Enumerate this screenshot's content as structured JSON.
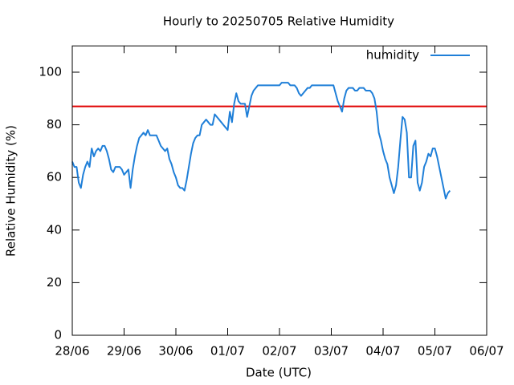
{
  "chart_data": {
    "type": "line",
    "title": "Hourly to 20250705 Relative Humidity",
    "xlabel": "Date (UTC)",
    "ylabel": "Relative Humidity (%)",
    "x": [
      0,
      1,
      2,
      3,
      4,
      5,
      6,
      7,
      8,
      9,
      10,
      11,
      12,
      13,
      14,
      15,
      16,
      17,
      18,
      19,
      20,
      21,
      22,
      23,
      24,
      25,
      26,
      27,
      28,
      29,
      30,
      31,
      32,
      33,
      34,
      35,
      36,
      37,
      38,
      39,
      40,
      41,
      42,
      43,
      44,
      45,
      46,
      47,
      48,
      49,
      50,
      51,
      52,
      53,
      54,
      55,
      56,
      57,
      58,
      59,
      60,
      61,
      62,
      63,
      64,
      65,
      66,
      67,
      68,
      69,
      70,
      71,
      72,
      73,
      74,
      75,
      76,
      77,
      78,
      79,
      80,
      81,
      82,
      83,
      84,
      85,
      86,
      87,
      88,
      89,
      90,
      91,
      92,
      93,
      94,
      95,
      96,
      97,
      98,
      99,
      100,
      101,
      102,
      103,
      104,
      105,
      106,
      107,
      108,
      109,
      110,
      111,
      112,
      113,
      114,
      115,
      116,
      117,
      118,
      119,
      120,
      121,
      122,
      123,
      124,
      125,
      126,
      127,
      128,
      129,
      130,
      131,
      132,
      133,
      134,
      135,
      136,
      137,
      138,
      139,
      140,
      141,
      142,
      143,
      144,
      145,
      146,
      147,
      148,
      149,
      150,
      151,
      152,
      153,
      154,
      155,
      156,
      157,
      158,
      159,
      160,
      161,
      162,
      163,
      164,
      165,
      166,
      167,
      168,
      169,
      170,
      171,
      172,
      173,
      174,
      175
    ],
    "series": [
      {
        "name": "humidity",
        "color": "#1f7fd8",
        "values": [
          66,
          64,
          64,
          58,
          56,
          61,
          64,
          66,
          64,
          71,
          68,
          70,
          71,
          70,
          72,
          72,
          70,
          67,
          63,
          62,
          64,
          64,
          64,
          63,
          61,
          62,
          63,
          56,
          63,
          68,
          72,
          75,
          76,
          77,
          76,
          78,
          76,
          76,
          76,
          76,
          74,
          72,
          71,
          70,
          71,
          67,
          65,
          62,
          60,
          57,
          56,
          56,
          55,
          59,
          64,
          69,
          73,
          75,
          76,
          76,
          80,
          81,
          82,
          81,
          80,
          80,
          84,
          83,
          82,
          81,
          80,
          79,
          78,
          85,
          81,
          88,
          92,
          89,
          88,
          88,
          88,
          83,
          87,
          91,
          93,
          94,
          95,
          95,
          95,
          95,
          95,
          95,
          95,
          95,
          95,
          95,
          95,
          96,
          96,
          96,
          96,
          95,
          95,
          95,
          94,
          92,
          91,
          92,
          93,
          94,
          94,
          95,
          95,
          95,
          95,
          95,
          95,
          95,
          95,
          95,
          95,
          95,
          92,
          89,
          87,
          85,
          90,
          93,
          94,
          94,
          94,
          93,
          93,
          94,
          94,
          94,
          93,
          93,
          93,
          92,
          90,
          85,
          77,
          74,
          70,
          67,
          65,
          60,
          57,
          54,
          57,
          64,
          74,
          83,
          82,
          77,
          60,
          60,
          72,
          74,
          58,
          55,
          58,
          64,
          66,
          69,
          68,
          71,
          71,
          68,
          64,
          60,
          56,
          52,
          54,
          55
        ]
      }
    ],
    "hline": {
      "value": 87,
      "color": "#e00000"
    },
    "xlim": [
      0,
      192
    ],
    "xticks": [
      {
        "value": 0,
        "label": "28/06"
      },
      {
        "value": 24,
        "label": "29/06"
      },
      {
        "value": 48,
        "label": "30/06"
      },
      {
        "value": 72,
        "label": "01/07"
      },
      {
        "value": 96,
        "label": "02/07"
      },
      {
        "value": 120,
        "label": "03/07"
      },
      {
        "value": 144,
        "label": "04/07"
      },
      {
        "value": 168,
        "label": "05/07"
      },
      {
        "value": 192,
        "label": "06/07"
      }
    ],
    "ylim": [
      0,
      110
    ],
    "yticks": [
      0,
      20,
      40,
      60,
      80,
      100
    ],
    "grid": false,
    "legend": "top-right"
  }
}
